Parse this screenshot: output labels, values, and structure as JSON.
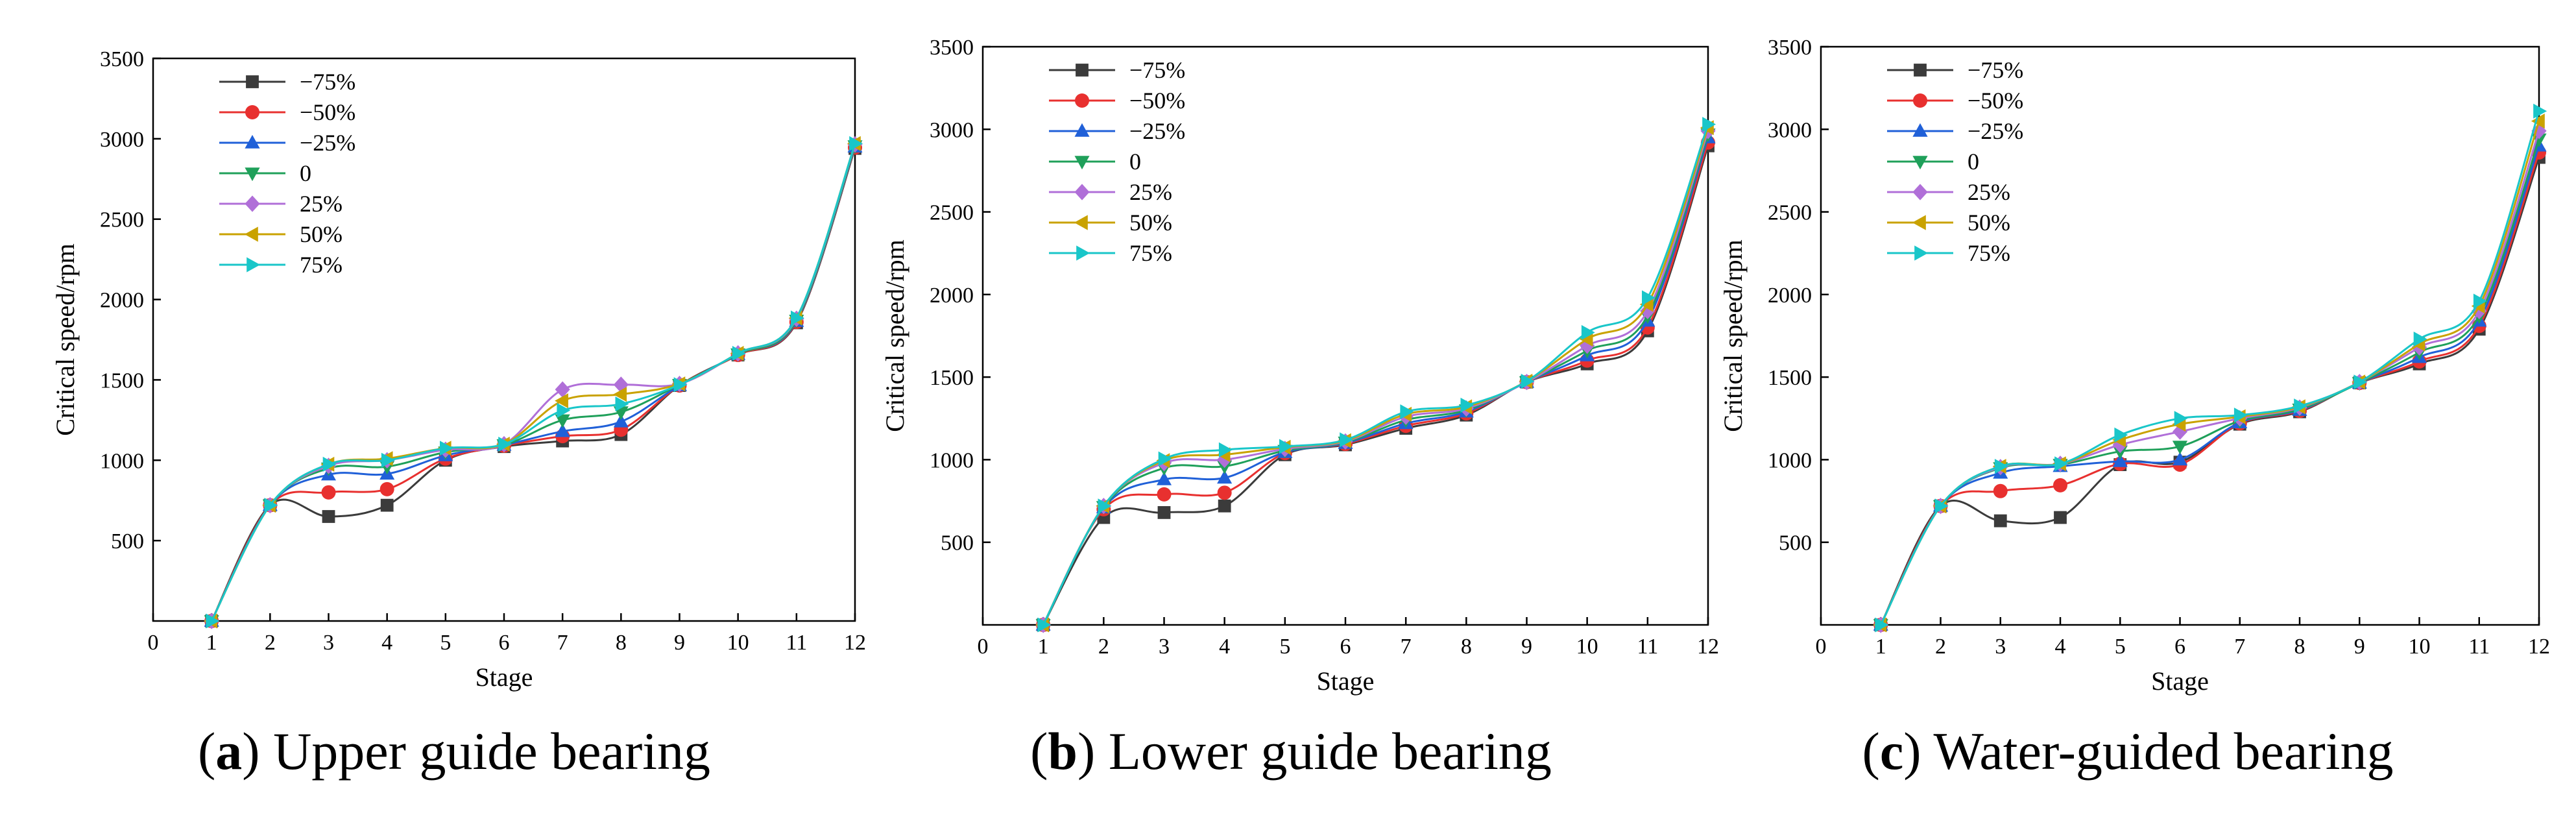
{
  "figure": {
    "panels": [
      {
        "id": "a",
        "label": "a",
        "caption": " Upper guide bearing"
      },
      {
        "id": "b",
        "label": "b",
        "caption": " Lower guide bearing"
      },
      {
        "id": "c",
        "label": "c",
        "caption": " Water-guided bearing"
      }
    ]
  },
  "chart_data": [
    {
      "type": "line",
      "panel": "a",
      "title": "(a) Upper guide bearing",
      "xlabel": "Stage",
      "ylabel": "Critical speed/rpm",
      "xlim": [
        0,
        12
      ],
      "ylim": [
        0,
        3500
      ],
      "xticks": [
        0,
        1,
        2,
        3,
        4,
        5,
        6,
        7,
        8,
        9,
        10,
        11,
        12
      ],
      "yticks": [
        500,
        1000,
        1500,
        2000,
        2500,
        3000,
        3500
      ],
      "grid": false,
      "legend_position": "top-left",
      "x": [
        1,
        2,
        3,
        4,
        5,
        6,
        7,
        8,
        9,
        10,
        11,
        12
      ],
      "series": [
        {
          "name": "−75%",
          "marker": "square",
          "color": "#3b3b3b",
          "values": [
            0,
            720,
            650,
            720,
            1000,
            1085,
            1120,
            1160,
            1465,
            1655,
            1855,
            2940
          ]
        },
        {
          "name": "−50%",
          "marker": "circle",
          "color": "#e8302f",
          "values": [
            0,
            720,
            800,
            820,
            1010,
            1090,
            1150,
            1190,
            1465,
            1655,
            1860,
            2945
          ]
        },
        {
          "name": "−25%",
          "marker": "triangle-up",
          "color": "#2060d8",
          "values": [
            0,
            720,
            910,
            915,
            1030,
            1095,
            1180,
            1240,
            1465,
            1660,
            1865,
            2950
          ]
        },
        {
          "name": "0",
          "marker": "triangle-down",
          "color": "#1fa05a",
          "values": [
            0,
            720,
            950,
            960,
            1050,
            1095,
            1250,
            1300,
            1470,
            1660,
            1870,
            2955
          ]
        },
        {
          "name": "25%",
          "marker": "diamond",
          "color": "#b06fd8",
          "values": [
            0,
            720,
            965,
            1000,
            1065,
            1100,
            1440,
            1470,
            1475,
            1665,
            1880,
            2965
          ]
        },
        {
          "name": "50%",
          "marker": "triangle-left",
          "color": "#c9a200",
          "values": [
            0,
            720,
            975,
            1010,
            1075,
            1100,
            1370,
            1410,
            1475,
            1665,
            1885,
            2970
          ]
        },
        {
          "name": "75%",
          "marker": "triangle-right",
          "color": "#19c6c9",
          "values": [
            0,
            720,
            975,
            1000,
            1075,
            1100,
            1310,
            1350,
            1470,
            1665,
            1885,
            2970
          ]
        }
      ]
    },
    {
      "type": "line",
      "panel": "b",
      "title": "(b) Lower guide bearing",
      "xlabel": "Stage",
      "ylabel": "Critical speed/rpm",
      "xlim": [
        0,
        12
      ],
      "ylim": [
        0,
        3500
      ],
      "xticks": [
        0,
        1,
        2,
        3,
        4,
        5,
        6,
        7,
        8,
        9,
        10,
        11,
        12
      ],
      "yticks": [
        500,
        1000,
        1500,
        2000,
        2500,
        3000,
        3500
      ],
      "grid": false,
      "legend_position": "top-left",
      "x": [
        1,
        2,
        3,
        4,
        5,
        6,
        7,
        8,
        9,
        10,
        11,
        12
      ],
      "series": [
        {
          "name": "−75%",
          "marker": "square",
          "color": "#3b3b3b",
          "values": [
            0,
            650,
            680,
            720,
            1030,
            1090,
            1190,
            1270,
            1470,
            1580,
            1780,
            2900
          ]
        },
        {
          "name": "−50%",
          "marker": "circle",
          "color": "#e8302f",
          "values": [
            0,
            700,
            790,
            800,
            1040,
            1095,
            1205,
            1280,
            1470,
            1600,
            1800,
            2920
          ]
        },
        {
          "name": "−25%",
          "marker": "triangle-up",
          "color": "#2060d8",
          "values": [
            0,
            710,
            880,
            890,
            1045,
            1100,
            1220,
            1290,
            1470,
            1630,
            1840,
            2950
          ]
        },
        {
          "name": "0",
          "marker": "triangle-down",
          "color": "#1fa05a",
          "values": [
            0,
            715,
            950,
            960,
            1055,
            1105,
            1240,
            1300,
            1470,
            1660,
            1870,
            2970
          ]
        },
        {
          "name": "25%",
          "marker": "diamond",
          "color": "#b06fd8",
          "values": [
            0,
            720,
            980,
            1000,
            1065,
            1110,
            1260,
            1310,
            1470,
            1690,
            1900,
            2990
          ]
        },
        {
          "name": "50%",
          "marker": "triangle-left",
          "color": "#c9a200",
          "values": [
            0,
            720,
            995,
            1030,
            1075,
            1115,
            1275,
            1320,
            1475,
            1730,
            1940,
            3010
          ]
        },
        {
          "name": "75%",
          "marker": "triangle-right",
          "color": "#19c6c9",
          "values": [
            0,
            720,
            1005,
            1060,
            1080,
            1120,
            1290,
            1330,
            1475,
            1770,
            1980,
            3030
          ]
        }
      ]
    },
    {
      "type": "line",
      "panel": "c",
      "title": "(c) Water-guided bearing",
      "xlabel": "Stage",
      "ylabel": "Critical speed/rpm",
      "xlim": [
        0,
        12
      ],
      "ylim": [
        0,
        3500
      ],
      "xticks": [
        0,
        1,
        2,
        3,
        4,
        5,
        6,
        7,
        8,
        9,
        10,
        11,
        12
      ],
      "yticks": [
        500,
        1000,
        1500,
        2000,
        2500,
        3000,
        3500
      ],
      "grid": false,
      "legend_position": "top-left",
      "x": [
        1,
        2,
        3,
        4,
        5,
        6,
        7,
        8,
        9,
        10,
        11,
        12
      ],
      "series": [
        {
          "name": "−75%",
          "marker": "square",
          "color": "#3b3b3b",
          "values": [
            0,
            720,
            630,
            650,
            970,
            985,
            1215,
            1290,
            1465,
            1580,
            1790,
            2830
          ]
        },
        {
          "name": "−50%",
          "marker": "circle",
          "color": "#e8302f",
          "values": [
            0,
            720,
            810,
            845,
            975,
            970,
            1220,
            1295,
            1465,
            1595,
            1810,
            2860
          ]
        },
        {
          "name": "−25%",
          "marker": "triangle-up",
          "color": "#2060d8",
          "values": [
            0,
            720,
            920,
            960,
            990,
            1000,
            1225,
            1300,
            1465,
            1620,
            1840,
            2900
          ]
        },
        {
          "name": "0",
          "marker": "triangle-down",
          "color": "#1fa05a",
          "values": [
            0,
            720,
            950,
            970,
            1050,
            1080,
            1235,
            1305,
            1465,
            1650,
            1870,
            2940
          ]
        },
        {
          "name": "25%",
          "marker": "diamond",
          "color": "#b06fd8",
          "values": [
            0,
            720,
            955,
            975,
            1090,
            1170,
            1250,
            1315,
            1470,
            1680,
            1900,
            2990
          ]
        },
        {
          "name": "50%",
          "marker": "triangle-left",
          "color": "#c9a200",
          "values": [
            0,
            720,
            960,
            975,
            1120,
            1215,
            1260,
            1320,
            1470,
            1700,
            1930,
            3050
          ]
        },
        {
          "name": "75%",
          "marker": "triangle-right",
          "color": "#19c6c9",
          "values": [
            0,
            720,
            960,
            975,
            1150,
            1250,
            1270,
            1325,
            1470,
            1730,
            1960,
            3110
          ]
        }
      ]
    }
  ]
}
